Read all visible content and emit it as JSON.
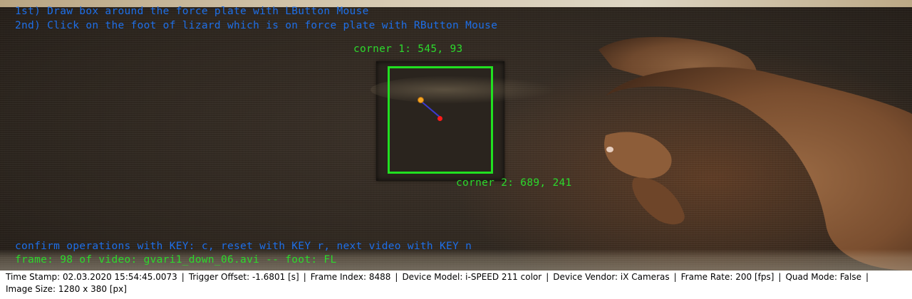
{
  "overlay": {
    "instruction_1": "1st) Draw box around the force plate with LButton Mouse",
    "instruction_2": "2nd) Click on the foot of lizard which is on force plate with RButton Mouse",
    "corner_1": "corner 1: 545, 93",
    "corner_2": "corner 2: 689, 241",
    "keys_hint": "confirm operations with KEY: c, reset with KEY r, next video with KEY n",
    "frame_info": "frame: 98 of video: gvari1_down_06.avi -- foot: FL"
  },
  "status": {
    "time_stamp": "Time Stamp: 02.03.2020 15:54:45.0073",
    "trigger_offset": "Trigger Offset: -1.6801 [s]",
    "frame_index": "Frame Index: 8488",
    "device_model": "Device Model: i-SPEED 211 color",
    "device_vendor": "Device Vendor: iX Cameras",
    "frame_rate": "Frame Rate: 200 [fps]",
    "quad_mode": "Quad Mode: False",
    "image_size": "Image Size: 1280 x 380 [px]",
    "separator": "|"
  },
  "colors": {
    "instruction_text": "#1e6fe8",
    "info_text": "#2cd92c",
    "box": "#21e021",
    "foot_marker": "#ff1a1a",
    "reference_marker": "#f5a623"
  }
}
